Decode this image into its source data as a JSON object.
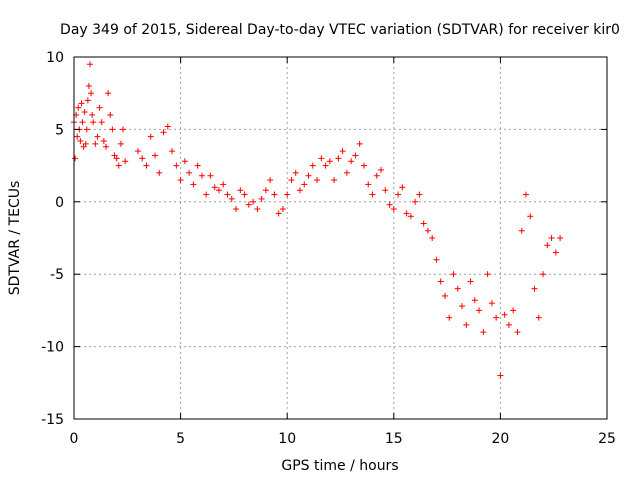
{
  "chart_data": {
    "type": "scatter",
    "title": "Day 349 of 2015, Sidereal Day-to-day VTEC variation (SDTVAR) for receiver kir0",
    "xlabel": "GPS time / hours",
    "ylabel": "SDTVAR / TECUs",
    "xlim": [
      0,
      25
    ],
    "ylim": [
      -15,
      10
    ],
    "xticks": [
      0,
      5,
      10,
      15,
      20,
      25
    ],
    "yticks": [
      -15,
      -10,
      -5,
      0,
      5,
      10
    ],
    "xtick_labels": [
      "0",
      "5",
      "10",
      "15",
      "20",
      "25"
    ],
    "ytick_labels": [
      "-15",
      "-10",
      "-5",
      "0",
      "5",
      "10"
    ],
    "grid": true,
    "marker": "+",
    "color": "#ff0000",
    "series": [
      {
        "name": "SDTVAR",
        "x": [
          0.0,
          0.05,
          0.1,
          0.15,
          0.2,
          0.25,
          0.3,
          0.35,
          0.4,
          0.45,
          0.5,
          0.55,
          0.6,
          0.65,
          0.7,
          0.75,
          0.8,
          0.85,
          0.9,
          1.0,
          1.1,
          1.2,
          1.3,
          1.4,
          1.5,
          1.6,
          1.7,
          1.8,
          1.9,
          2.0,
          2.1,
          2.2,
          2.3,
          2.4,
          3.0,
          3.2,
          3.4,
          3.6,
          3.8,
          4.0,
          4.2,
          4.4,
          4.6,
          4.8,
          5.0,
          5.2,
          5.4,
          5.6,
          5.8,
          6.0,
          6.2,
          6.4,
          6.6,
          6.8,
          7.0,
          7.2,
          7.4,
          7.6,
          7.8,
          8.0,
          8.2,
          8.4,
          8.6,
          8.8,
          9.0,
          9.2,
          9.4,
          9.6,
          9.8,
          10.0,
          10.2,
          10.4,
          10.6,
          10.8,
          11.0,
          11.2,
          11.4,
          11.6,
          11.8,
          12.0,
          12.2,
          12.4,
          12.6,
          12.8,
          13.0,
          13.2,
          13.4,
          13.6,
          13.8,
          14.0,
          14.2,
          14.4,
          14.6,
          14.8,
          15.0,
          15.2,
          15.4,
          15.6,
          15.8,
          16.0,
          16.2,
          16.4,
          16.6,
          16.8,
          17.0,
          17.2,
          17.4,
          17.6,
          17.8,
          18.0,
          18.2,
          18.4,
          18.6,
          18.8,
          19.0,
          19.2,
          19.4,
          19.6,
          19.8,
          20.0,
          20.2,
          20.4,
          20.6,
          20.8,
          21.0,
          21.2,
          21.4,
          21.6,
          21.8,
          22.0,
          22.2,
          22.4,
          22.6,
          22.8
        ],
        "y": [
          5.5,
          3.0,
          6.0,
          4.5,
          6.5,
          5.0,
          4.2,
          6.8,
          5.5,
          3.8,
          6.2,
          4.0,
          5.0,
          7.0,
          8.0,
          9.5,
          7.5,
          6.0,
          5.5,
          4.0,
          4.5,
          6.5,
          5.5,
          4.2,
          3.8,
          7.5,
          6.0,
          5.0,
          3.2,
          3.0,
          2.5,
          4.0,
          5.0,
          2.8,
          3.5,
          3.0,
          2.5,
          4.5,
          3.2,
          2.0,
          4.8,
          5.2,
          3.5,
          2.5,
          1.5,
          2.8,
          2.0,
          1.2,
          2.5,
          1.8,
          0.5,
          1.8,
          1.0,
          0.8,
          1.2,
          0.5,
          0.2,
          -0.5,
          0.8,
          0.5,
          -0.2,
          0.0,
          -0.5,
          0.2,
          0.8,
          1.5,
          0.5,
          -0.8,
          -0.5,
          0.5,
          1.5,
          2.0,
          0.8,
          1.2,
          1.8,
          2.5,
          1.5,
          3.0,
          2.5,
          2.8,
          1.5,
          3.0,
          3.5,
          2.0,
          2.8,
          3.2,
          4.0,
          2.5,
          1.2,
          0.5,
          1.8,
          2.2,
          0.8,
          -0.2,
          -0.5,
          0.5,
          1.0,
          -0.8,
          -1.0,
          0.0,
          0.5,
          -1.5,
          -2.0,
          -2.5,
          -4.0,
          -5.5,
          -6.5,
          -8.0,
          -5.0,
          -6.0,
          -7.2,
          -8.5,
          -5.5,
          -6.8,
          -7.5,
          -9.0,
          -5.0,
          -7.0,
          -8.0,
          -12.0,
          -7.8,
          -8.5,
          -7.5,
          -9.0,
          -2.0,
          0.5,
          -1.0,
          -6.0,
          -8.0,
          -5.0,
          -3.0,
          -2.5,
          -3.5,
          -2.5
        ]
      }
    ]
  }
}
